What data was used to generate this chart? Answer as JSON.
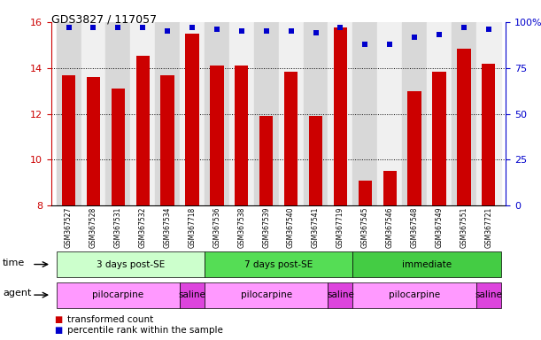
{
  "title": "GDS3827 / 117057",
  "samples": [
    "GSM367527",
    "GSM367528",
    "GSM367531",
    "GSM367532",
    "GSM367534",
    "GSM367718",
    "GSM367536",
    "GSM367538",
    "GSM367539",
    "GSM367540",
    "GSM367541",
    "GSM367719",
    "GSM367545",
    "GSM367546",
    "GSM367548",
    "GSM367549",
    "GSM367551",
    "GSM367721"
  ],
  "red_values": [
    13.7,
    13.6,
    13.1,
    14.55,
    13.7,
    15.5,
    14.1,
    14.1,
    11.9,
    13.85,
    11.9,
    15.75,
    9.1,
    9.5,
    13.0,
    13.85,
    14.85,
    14.2
  ],
  "blue_values": [
    97,
    97,
    97,
    97,
    95,
    97,
    96,
    95,
    95,
    95,
    94,
    97,
    88,
    88,
    92,
    93,
    97,
    96
  ],
  "ylim_left": [
    8,
    16
  ],
  "ylim_right": [
    0,
    100
  ],
  "yticks_left": [
    8,
    10,
    12,
    14,
    16
  ],
  "yticks_right": [
    0,
    25,
    50,
    75,
    100
  ],
  "ytick_labels_right": [
    "0",
    "25",
    "50",
    "75",
    "100%"
  ],
  "ytick_labels_left": [
    "8",
    "10",
    "12",
    "14",
    "16"
  ],
  "bar_color": "#cc0000",
  "dot_color": "#0000cc",
  "time_groups": [
    {
      "label": "3 days post-SE",
      "start": 0,
      "end": 5,
      "color": "#ccffcc"
    },
    {
      "label": "7 days post-SE",
      "start": 6,
      "end": 11,
      "color": "#55dd55"
    },
    {
      "label": "immediate",
      "start": 12,
      "end": 17,
      "color": "#44cc44"
    }
  ],
  "agent_groups": [
    {
      "label": "pilocarpine",
      "start": 0,
      "end": 4,
      "color": "#ff99ff"
    },
    {
      "label": "saline",
      "start": 5,
      "end": 5,
      "color": "#dd44dd"
    },
    {
      "label": "pilocarpine",
      "start": 6,
      "end": 10,
      "color": "#ff99ff"
    },
    {
      "label": "saline",
      "start": 11,
      "end": 11,
      "color": "#dd44dd"
    },
    {
      "label": "pilocarpine",
      "start": 12,
      "end": 16,
      "color": "#ff99ff"
    },
    {
      "label": "saline",
      "start": 17,
      "end": 17,
      "color": "#dd44dd"
    }
  ],
  "legend_items": [
    {
      "label": "transformed count",
      "color": "#cc0000"
    },
    {
      "label": "percentile rank within the sample",
      "color": "#0000cc"
    }
  ],
  "grid_color": "#888888",
  "background_color": "#ffffff",
  "tick_label_color_left": "#cc0000",
  "tick_label_color_right": "#0000cc",
  "sample_bg_color": "#d8d8d8",
  "sample_bg_alt": "#f0f0f0"
}
